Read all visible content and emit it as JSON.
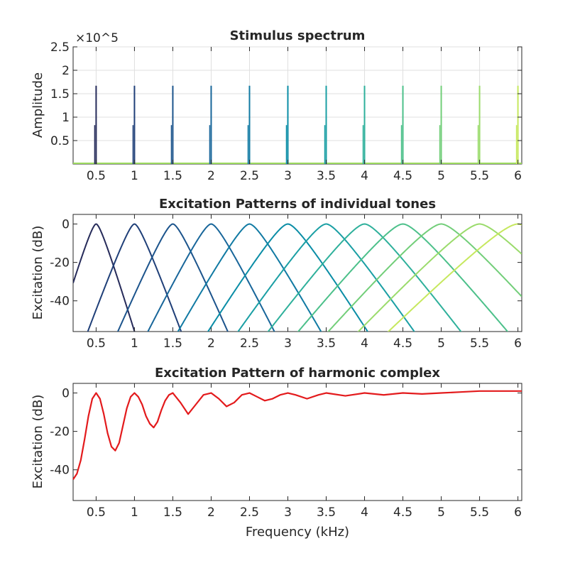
{
  "chart_data": [
    {
      "type": "bar",
      "title": "Stimulus spectrum",
      "ylabel": "Amplitude",
      "xlabel": "",
      "y_exponent": "×10^5",
      "xlim": [
        0.2,
        6.05
      ],
      "ylim": [
        0,
        2.5
      ],
      "xticks": [
        0.5,
        1,
        1.5,
        2,
        2.5,
        3,
        3.5,
        4,
        4.5,
        5,
        5.5,
        6
      ],
      "xtick_labels": [
        "0.5",
        "1",
        "1.5",
        "2",
        "2.5",
        "3",
        "3.5",
        "4",
        "4.5",
        "5",
        "5.5",
        "6"
      ],
      "yticks": [
        0.5,
        1,
        1.5,
        2,
        2.5
      ],
      "ytick_labels": [
        "0.5",
        "1",
        "1.5",
        "2",
        "2.5"
      ],
      "grid": true,
      "harmonics_khz": [
        0.5,
        1,
        1.5,
        2,
        2.5,
        3,
        3.5,
        4,
        4.5,
        5,
        5.5,
        6
      ],
      "peak_amplitude": 1.67,
      "secondary_amplitude": 0.83,
      "colors": [
        "#262b5a",
        "#1f3f78",
        "#1c548c",
        "#18669a",
        "#117aa3",
        "#0a8da6",
        "#1a9fa4",
        "#2eb09b",
        "#4cc08a",
        "#72ce79",
        "#9adb6b",
        "#c6e85e"
      ],
      "baseline_color": "#9edc5f"
    },
    {
      "type": "line",
      "title": "Excitation Patterns of individual tones",
      "ylabel": "Excitation (dB)",
      "xlabel": "",
      "xlim": [
        0.2,
        6.05
      ],
      "ylim": [
        -56,
        5
      ],
      "xticks": [
        0.5,
        1,
        1.5,
        2,
        2.5,
        3,
        3.5,
        4,
        4.5,
        5,
        5.5,
        6
      ],
      "xtick_labels": [
        "0.5",
        "1",
        "1.5",
        "2",
        "2.5",
        "3",
        "3.5",
        "4",
        "4.5",
        "5",
        "5.5",
        "6"
      ],
      "yticks": [
        0,
        -20,
        -40
      ],
      "ytick_labels": [
        "0",
        "-20",
        "-40"
      ],
      "grid": false,
      "tone_centers_khz": [
        0.5,
        1,
        1.5,
        2,
        2.5,
        3,
        3.5,
        4,
        4.5,
        5,
        5.5,
        6
      ],
      "peak_db": 0,
      "filter_shape": "roex",
      "erb_base_khz": 0.1
    },
    {
      "type": "line",
      "title": "Excitation Pattern of harmonic complex",
      "ylabel": "Excitation (dB)",
      "xlabel": "Frequency (kHz)",
      "xlim": [
        0.2,
        6.05
      ],
      "ylim": [
        -56,
        5
      ],
      "xticks": [
        0.5,
        1,
        1.5,
        2,
        2.5,
        3,
        3.5,
        4,
        4.5,
        5,
        5.5,
        6
      ],
      "xtick_labels": [
        "0.5",
        "1",
        "1.5",
        "2",
        "2.5",
        "3",
        "3.5",
        "4",
        "4.5",
        "5",
        "5.5",
        "6"
      ],
      "yticks": [
        0,
        -20,
        -40
      ],
      "ytick_labels": [
        "0",
        "-20",
        "-40"
      ],
      "grid": false,
      "line_color": "#e31a1c",
      "series": [
        {
          "x": [
            0.2,
            0.25,
            0.3,
            0.35,
            0.4,
            0.45,
            0.5,
            0.55,
            0.6,
            0.65,
            0.7,
            0.75,
            0.8,
            0.85,
            0.9,
            0.95,
            1.0,
            1.05,
            1.1,
            1.15,
            1.2,
            1.25,
            1.3,
            1.35,
            1.4,
            1.45,
            1.5,
            1.6,
            1.7,
            1.8,
            1.9,
            2.0,
            2.1,
            2.2,
            2.3,
            2.4,
            2.5,
            2.6,
            2.7,
            2.8,
            2.9,
            3.0,
            3.1,
            3.25,
            3.4,
            3.5,
            3.75,
            4.0,
            4.25,
            4.5,
            4.75,
            5.0,
            5.25,
            5.5,
            5.75,
            6.05
          ],
          "y": [
            -45,
            -42,
            -35,
            -24,
            -12,
            -3,
            0,
            -3,
            -11,
            -21,
            -28,
            -30,
            -26,
            -17,
            -8,
            -2,
            0,
            -2,
            -6,
            -12,
            -16,
            -18,
            -15,
            -9,
            -4,
            -1,
            0,
            -5,
            -11,
            -6,
            -1,
            0,
            -3,
            -7,
            -5,
            -1,
            0,
            -2,
            -4,
            -3,
            -1,
            0,
            -1,
            -3,
            -1,
            0,
            -1.5,
            0,
            -1,
            0,
            -0.5,
            0,
            0.5,
            1,
            1,
            1
          ]
        }
      ]
    }
  ]
}
